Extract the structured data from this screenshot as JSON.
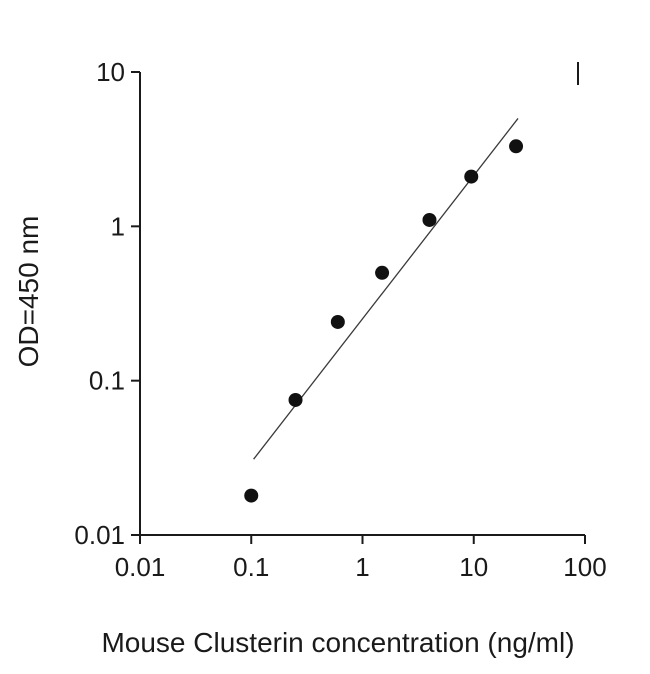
{
  "figure": {
    "background": "#ffffff"
  },
  "chart_data": {
    "type": "scatter",
    "title": "",
    "xlabel": "Mouse Clusterin concentration (ng/ml)",
    "ylabel": "OD=450 nm",
    "x_scale": "log",
    "y_scale": "log",
    "xlim": [
      0.01,
      100
    ],
    "ylim": [
      0.01,
      10
    ],
    "x_ticks": [
      0.01,
      0.1,
      1,
      10,
      100
    ],
    "x_tick_labels": [
      "0.01",
      "0.1",
      "1",
      "10",
      "100"
    ],
    "y_ticks": [
      0.01,
      0.1,
      1,
      10
    ],
    "y_tick_labels": [
      "0.01",
      "0.1",
      "1",
      "10"
    ],
    "grid": false,
    "legend": "none",
    "axis_color": "#1a1a1a",
    "series": [
      {
        "name": "standard-curve-points",
        "type": "scatter",
        "marker": "circle",
        "color": "#111111",
        "points": [
          {
            "x": 0.1,
            "y": 0.018
          },
          {
            "x": 0.25,
            "y": 0.075
          },
          {
            "x": 0.6,
            "y": 0.24
          },
          {
            "x": 1.5,
            "y": 0.5
          },
          {
            "x": 4,
            "y": 1.1
          },
          {
            "x": 9.5,
            "y": 2.1
          },
          {
            "x": 24,
            "y": 3.3
          }
        ]
      },
      {
        "name": "trend-line",
        "type": "line",
        "color": "#3a3a3a",
        "points": [
          {
            "x": 0.105,
            "y": 0.031
          },
          {
            "x": 25,
            "y": 5
          }
        ]
      }
    ]
  }
}
